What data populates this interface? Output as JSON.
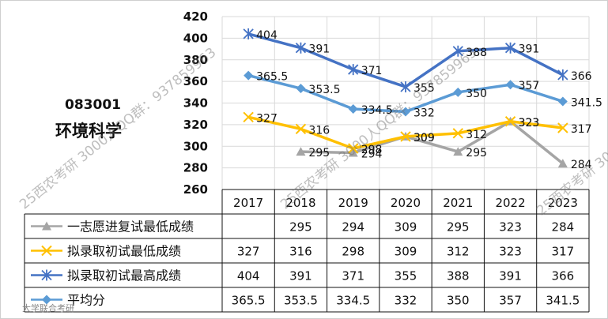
{
  "code": "083001",
  "subject": "环境科学",
  "watermark_text": "25西农考研 3000人QQ群：937859963",
  "watermark_source": "大学联合考研",
  "colors": {
    "grey": "#a5a5a5",
    "yellow": "#ffc000",
    "navy": "#4472c4",
    "light_blue": "#5b9bd5",
    "grid": "#d9d9d9",
    "text": "#111111"
  },
  "chart_data": {
    "type": "line",
    "categories": [
      "2017",
      "2018",
      "2019",
      "2020",
      "2021",
      "2022",
      "2023"
    ],
    "ylim": [
      260,
      420
    ],
    "yticks": [
      260,
      280,
      300,
      320,
      340,
      360,
      380,
      400,
      420
    ],
    "grid": true,
    "series": [
      {
        "name": "一志愿进复试最低成绩",
        "marker": "triangle",
        "color": "#a5a5a5",
        "values": [
          null,
          295,
          294,
          309,
          295,
          323,
          284
        ]
      },
      {
        "name": "拟录取初试最低成绩",
        "marker": "x",
        "color": "#ffc000",
        "values": [
          327,
          316,
          298,
          309,
          312,
          323,
          317
        ]
      },
      {
        "name": "拟录取初试最高成绩",
        "marker": "star",
        "color": "#4472c4",
        "values": [
          404,
          391,
          371,
          355,
          388,
          391,
          366
        ]
      },
      {
        "name": "平均分",
        "marker": "diamond",
        "color": "#5b9bd5",
        "values": [
          365.5,
          353.5,
          334.5,
          332,
          350,
          357,
          341.5
        ]
      }
    ]
  }
}
